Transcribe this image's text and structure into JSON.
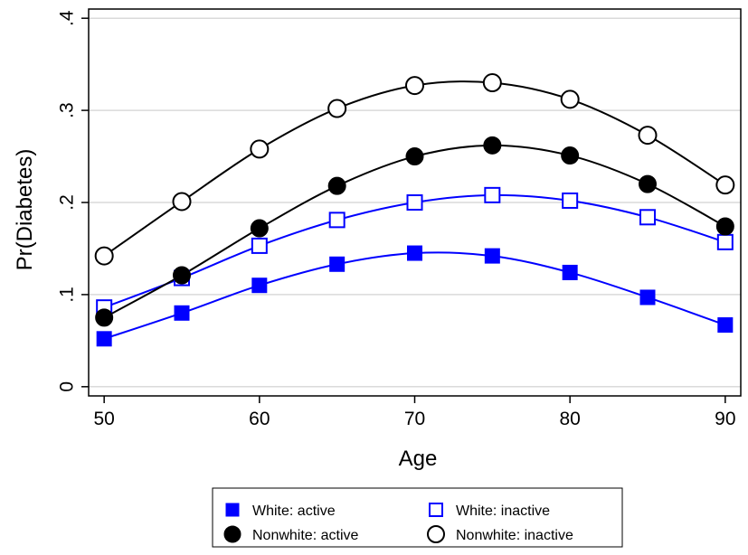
{
  "chart_data": {
    "type": "line",
    "title": "",
    "xlabel": "Age",
    "ylabel": "Pr(Diabetes)",
    "x": [
      50,
      55,
      60,
      65,
      70,
      75,
      80,
      85,
      90
    ],
    "xlim": [
      49,
      91
    ],
    "ylim": [
      -0.01,
      0.41
    ],
    "xticks": [
      50,
      60,
      70,
      80,
      90
    ],
    "xtick_labels": [
      "50",
      "60",
      "70",
      "80",
      "90"
    ],
    "yticks": [
      0,
      0.1,
      0.2,
      0.3,
      0.4
    ],
    "ytick_labels": [
      "0",
      ".1",
      ".2",
      ".3",
      ".4"
    ],
    "grid": "horizontal",
    "legend_position": "bottom",
    "series": [
      {
        "name": "White: active",
        "marker": "square-filled",
        "color": "#0000ff",
        "values": [
          0.052,
          0.08,
          0.11,
          0.133,
          0.145,
          0.142,
          0.124,
          0.097,
          0.067
        ]
      },
      {
        "name": "White: inactive",
        "marker": "square-hollow",
        "color": "#0000ff",
        "values": [
          0.086,
          0.118,
          0.153,
          0.181,
          0.2,
          0.208,
          0.202,
          0.184,
          0.157
        ]
      },
      {
        "name": "Nonwhite: active",
        "marker": "circle-filled",
        "color": "#000000",
        "values": [
          0.075,
          0.121,
          0.172,
          0.218,
          0.25,
          0.262,
          0.251,
          0.22,
          0.174
        ]
      },
      {
        "name": "Nonwhite: inactive",
        "marker": "circle-hollow",
        "color": "#000000",
        "values": [
          0.142,
          0.201,
          0.258,
          0.302,
          0.327,
          0.33,
          0.312,
          0.273,
          0.219
        ]
      }
    ]
  }
}
